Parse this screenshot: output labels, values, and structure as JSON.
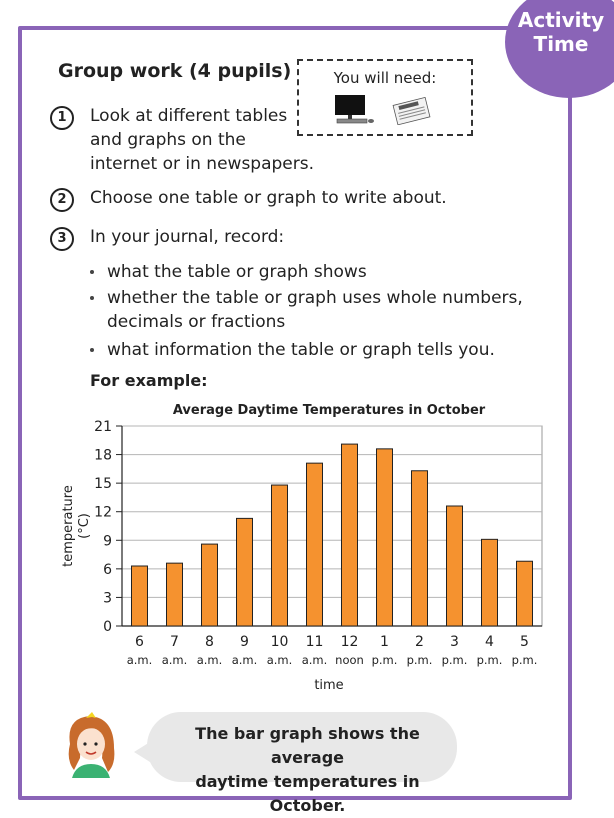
{
  "badge": {
    "line1": "Activity",
    "line2": "Time"
  },
  "title": "Group work (4 pupils)",
  "need_box": {
    "label": "You will need:",
    "icons": [
      "computer-icon",
      "newspaper-icon"
    ]
  },
  "steps": [
    {
      "num": "1",
      "lines": [
        "Look at different tables",
        "and graphs on the",
        "internet or in newspapers."
      ]
    },
    {
      "num": "2",
      "text": "Choose one table or graph to write about."
    },
    {
      "num": "3",
      "text": "In your journal, record:"
    }
  ],
  "bullets": [
    [
      "what the table or graph shows"
    ],
    [
      "whether the table or graph uses whole numbers,",
      "decimals or fractions"
    ],
    [
      "what information the table or graph tells you."
    ]
  ],
  "example_label": "For example:",
  "speech": {
    "lines": [
      "The bar graph shows the average",
      "daytime temperatures in October."
    ]
  },
  "chart_data": {
    "type": "bar",
    "title": "Average Daytime Temperatures in October",
    "xlabel": "time",
    "ylabel_lines": [
      "temperature",
      "(°C)"
    ],
    "categories": [
      [
        "6",
        "a.m."
      ],
      [
        "7",
        "a.m."
      ],
      [
        "8",
        "a.m."
      ],
      [
        "9",
        "a.m."
      ],
      [
        "10",
        "a.m."
      ],
      [
        "11",
        "a.m."
      ],
      [
        "12",
        "noon"
      ],
      [
        "1",
        "p.m."
      ],
      [
        "2",
        "p.m."
      ],
      [
        "3",
        "p.m."
      ],
      [
        "4",
        "p.m."
      ],
      [
        "5",
        "p.m."
      ]
    ],
    "values": [
      6.3,
      6.6,
      8.6,
      11.3,
      14.8,
      17.1,
      19.1,
      18.6,
      16.3,
      12.6,
      9.1,
      6.8
    ],
    "yticks": [
      0,
      3,
      6,
      9,
      12,
      15,
      18,
      21
    ],
    "ylim": [
      0,
      21
    ],
    "bar_color": "#f5922f",
    "grid": true
  }
}
